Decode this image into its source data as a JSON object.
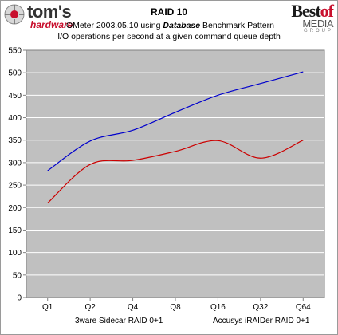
{
  "header": {
    "logo_left_main": "tom's",
    "logo_left_sub": "hardware",
    "logo_right_line1a": "Best",
    "logo_right_line1b": "of",
    "logo_right_line2": "MEDIA",
    "logo_right_line3": "GROUP"
  },
  "chart_data": {
    "type": "line",
    "title": "RAID 10",
    "subtitle_line1_prefix": "IOMeter 2003.05.10 using ",
    "subtitle_line1_emphasis": "Database",
    "subtitle_line1_suffix": " Benchmark Pattern",
    "subtitle_line2": "I/O operations per second at a given command queue depth",
    "categories": [
      "Q1",
      "Q2",
      "Q4",
      "Q8",
      "Q16",
      "Q32",
      "Q64"
    ],
    "series": [
      {
        "name": "3ware Sidecar RAID 0+1",
        "color": "#0000cc",
        "values": [
          282,
          348,
          372,
          412,
          450,
          476,
          502
        ]
      },
      {
        "name": "Accusys iRAIDer RAID 0+1",
        "color": "#cc0000",
        "values": [
          210,
          296,
          305,
          325,
          349,
          310,
          350
        ]
      }
    ],
    "ylim": [
      0,
      550
    ],
    "yticks": [
      0,
      50,
      100,
      150,
      200,
      250,
      300,
      350,
      400,
      450,
      500,
      550
    ],
    "grid": true,
    "legend_position": "bottom"
  }
}
